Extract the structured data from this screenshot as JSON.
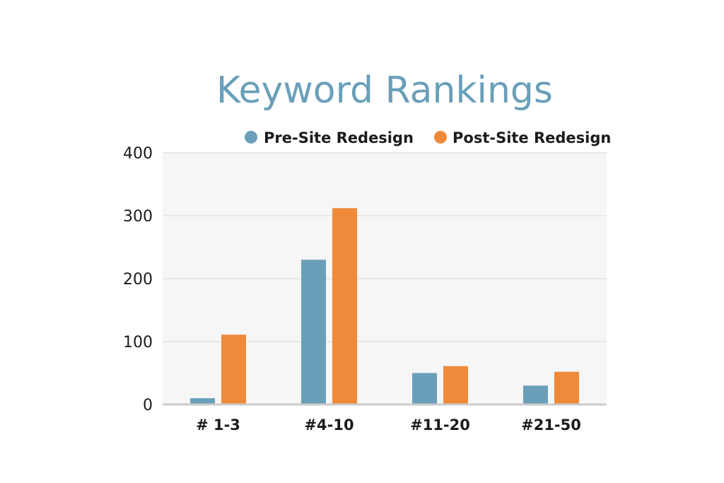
{
  "chart_data": {
    "type": "bar",
    "title": "Keyword Rankings",
    "xlabel": "",
    "ylabel": "",
    "categories": [
      "# 1-3",
      "#4-10",
      "#11-20",
      "#21-50"
    ],
    "series": [
      {
        "name": "Pre-Site Redesign",
        "values": [
          10,
          230,
          50,
          30
        ],
        "color": "#6a9fba"
      },
      {
        "name": "Post-Site Redesign",
        "values": [
          111,
          312,
          61,
          52
        ],
        "color": "#ee8a3a"
      }
    ],
    "ylim": [
      0,
      400
    ],
    "yticks": [
      "0",
      "100",
      "200",
      "300",
      "400"
    ],
    "grid": true,
    "legend_position": "top-right",
    "plot_background": "#f6f6f6",
    "gridline_color": "#e4e4e4",
    "axis_color": "#cccccc"
  }
}
